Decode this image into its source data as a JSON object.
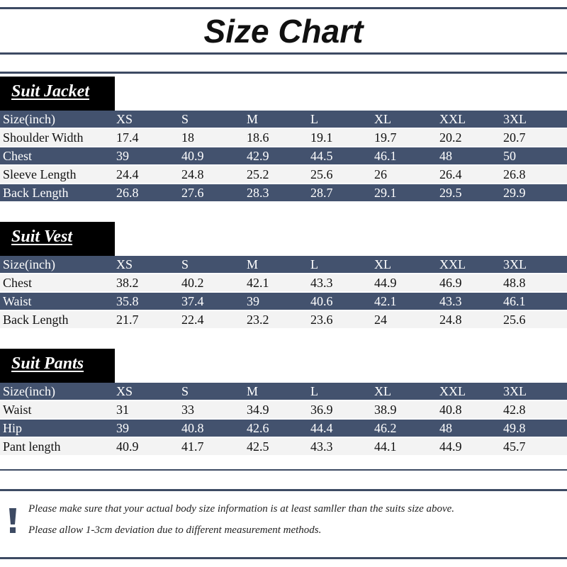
{
  "title": "Size Chart",
  "colors": {
    "header_row": "#43526e",
    "light_row": "#f3f3f3",
    "label_box": "#000000",
    "rule": "#3d4a63"
  },
  "icons": {
    "warning": "exclamation-icon"
  },
  "sections": [
    {
      "label": "Suit Jacket",
      "header": [
        "Size(inch)",
        "XS",
        "S",
        "M",
        "L",
        "XL",
        "XXL",
        "3XL"
      ],
      "rows": [
        [
          "Shoulder Width",
          "17.4",
          "18",
          "18.6",
          "19.1",
          "19.7",
          "20.2",
          "20.7"
        ],
        [
          "Chest",
          "39",
          "40.9",
          "42.9",
          "44.5",
          "46.1",
          "48",
          "50"
        ],
        [
          "Sleeve Length",
          "24.4",
          "24.8",
          "25.2",
          "25.6",
          "26",
          "26.4",
          "26.8"
        ],
        [
          "Back Length",
          "26.8",
          "27.6",
          "28.3",
          "28.7",
          "29.1",
          "29.5",
          "29.9"
        ]
      ]
    },
    {
      "label": "Suit Vest",
      "header": [
        "Size(inch)",
        "XS",
        "S",
        "M",
        "L",
        "XL",
        "XXL",
        "3XL"
      ],
      "rows": [
        [
          "Chest",
          "38.2",
          "40.2",
          "42.1",
          "43.3",
          "44.9",
          "46.9",
          "48.8"
        ],
        [
          "Waist",
          "35.8",
          "37.4",
          "39",
          "40.6",
          "42.1",
          "43.3",
          "46.1"
        ],
        [
          "Back Length",
          "21.7",
          "22.4",
          "23.2",
          "23.6",
          "24",
          "24.8",
          "25.6"
        ]
      ]
    },
    {
      "label": "Suit Pants",
      "header": [
        "Size(inch)",
        "XS",
        "S",
        "M",
        "L",
        "XL",
        "XXL",
        "3XL"
      ],
      "rows": [
        [
          "Waist",
          "31",
          "33",
          "34.9",
          "36.9",
          "38.9",
          "40.8",
          "42.8"
        ],
        [
          "Hip",
          "39",
          "40.8",
          "42.6",
          "44.4",
          "46.2",
          "48",
          "49.8"
        ],
        [
          "Pant length",
          "40.9",
          "41.7",
          "42.5",
          "43.3",
          "44.1",
          "44.9",
          "45.7"
        ]
      ]
    }
  ],
  "notes": [
    "Please make sure that your actual body size information is at least samller than the suits size above.",
    "Please allow 1-3cm deviation due to different measurement methods."
  ]
}
